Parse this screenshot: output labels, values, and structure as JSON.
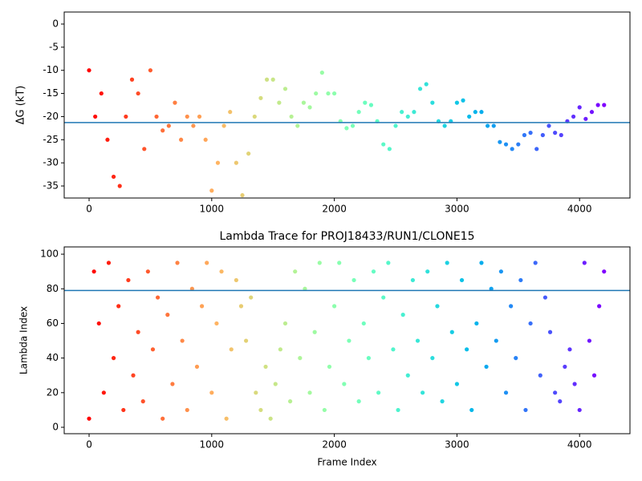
{
  "chart_data": [
    {
      "type": "scatter",
      "ylabel": "ΔG (kT)",
      "colormap": "rainbow_r",
      "hline": -21.3,
      "hline_color": "#1f77b4",
      "x": [
        0,
        50,
        100,
        150,
        200,
        250,
        300,
        350,
        400,
        450,
        500,
        550,
        600,
        650,
        700,
        750,
        800,
        850,
        900,
        950,
        1000,
        1050,
        1100,
        1150,
        1200,
        1250,
        1300,
        1350,
        1400,
        1450,
        1500,
        1550,
        1600,
        1650,
        1700,
        1750,
        1800,
        1850,
        1900,
        1950,
        2000,
        2050,
        2100,
        2150,
        2200,
        2250,
        2300,
        2350,
        2400,
        2450,
        2500,
        2550,
        2600,
        2650,
        2700,
        2750,
        2800,
        2850,
        2900,
        2950,
        3000,
        3050,
        3100,
        3150,
        3200,
        3250,
        3300,
        3350,
        3400,
        3450,
        3500,
        3550,
        3600,
        3650,
        3700,
        3750,
        3800,
        3850,
        3900,
        3950,
        4000,
        4050,
        4100,
        4150,
        4200
      ],
      "values": [
        -10,
        -20,
        -15,
        -25,
        -33,
        -35,
        -20,
        -12,
        -15,
        -27,
        -10,
        -20,
        -23,
        -22,
        -17,
        -25,
        -20,
        -22,
        -20,
        -25,
        -36,
        -30,
        -22,
        -19,
        -30,
        -37,
        -28,
        -20,
        -16,
        -12,
        -12,
        -17,
        -14,
        -20,
        -22,
        -17,
        -18,
        -15,
        -10.5,
        -15,
        -15,
        -21,
        -22.5,
        -22,
        -19,
        -17,
        -17.5,
        -21,
        -26,
        -27,
        -22,
        -19,
        -20,
        -19,
        -14,
        -13,
        -17,
        -21,
        -22,
        -21,
        -17,
        -16.5,
        -20,
        -19,
        -19,
        -22,
        -22,
        -25.5,
        -26,
        -27,
        -26,
        -24,
        -23.5,
        -27,
        -24,
        -22,
        -23.5,
        -24,
        -21,
        -20,
        -18,
        -20.5,
        -19,
        -17.5,
        -17.5
      ],
      "xlim": [
        -203,
        4411
      ],
      "xticks": [
        0,
        1000,
        2000,
        3000,
        4000
      ],
      "ylim": [
        -37.6,
        2.6
      ],
      "yticks": [
        0,
        -5,
        -10,
        -15,
        -20,
        -25,
        -30,
        -35
      ]
    },
    {
      "type": "scatter",
      "title": "Lambda Trace for PROJ18433/RUN1/CLONE15",
      "xlabel": "Frame Index",
      "ylabel": "Lambda Index",
      "colormap": "rainbow_r",
      "hline": 79,
      "hline_color": "#1f77b4",
      "x": [
        0,
        40,
        80,
        120,
        160,
        200,
        240,
        280,
        320,
        360,
        400,
        440,
        480,
        520,
        560,
        600,
        640,
        680,
        720,
        760,
        800,
        840,
        880,
        920,
        960,
        1000,
        1040,
        1080,
        1120,
        1160,
        1200,
        1240,
        1280,
        1320,
        1360,
        1400,
        1440,
        1480,
        1520,
        1560,
        1600,
        1640,
        1680,
        1720,
        1760,
        1800,
        1840,
        1880,
        1920,
        1960,
        2000,
        2040,
        2080,
        2120,
        2160,
        2200,
        2240,
        2280,
        2320,
        2360,
        2400,
        2440,
        2480,
        2520,
        2560,
        2600,
        2640,
        2680,
        2720,
        2760,
        2800,
        2840,
        2880,
        2920,
        2960,
        3000,
        3040,
        3080,
        3120,
        3160,
        3200,
        3240,
        3280,
        3320,
        3360,
        3400,
        3440,
        3480,
        3520,
        3560,
        3600,
        3640,
        3680,
        3720,
        3760,
        3800,
        3840,
        3880,
        3920,
        3960,
        4000,
        4040,
        4080,
        4120,
        4160,
        4200
      ],
      "values": [
        5,
        90,
        60,
        20,
        95,
        40,
        70,
        10,
        85,
        30,
        55,
        15,
        90,
        45,
        75,
        5,
        65,
        25,
        95,
        50,
        10,
        80,
        35,
        70,
        95,
        20,
        60,
        90,
        5,
        45,
        85,
        70,
        50,
        75,
        20,
        10,
        35,
        5,
        25,
        45,
        60,
        15,
        90,
        40,
        80,
        20,
        55,
        95,
        10,
        35,
        70,
        95,
        25,
        50,
        85,
        15,
        60,
        40,
        90,
        20,
        75,
        95,
        45,
        10,
        65,
        30,
        85,
        50,
        20,
        90,
        40,
        70,
        15,
        95,
        55,
        25,
        85,
        45,
        10,
        60,
        95,
        35,
        80,
        50,
        90,
        20,
        70,
        40,
        85,
        10,
        60,
        95,
        30,
        75,
        55,
        20,
        15,
        35,
        45,
        25,
        10,
        95,
        50,
        30,
        70,
        90
      ],
      "xlim": [
        -203,
        4411
      ],
      "xticks": [
        0,
        1000,
        2000,
        3000,
        4000
      ],
      "ylim": [
        -3.7,
        104.2
      ],
      "yticks": [
        0,
        20,
        40,
        60,
        80,
        100
      ]
    }
  ]
}
